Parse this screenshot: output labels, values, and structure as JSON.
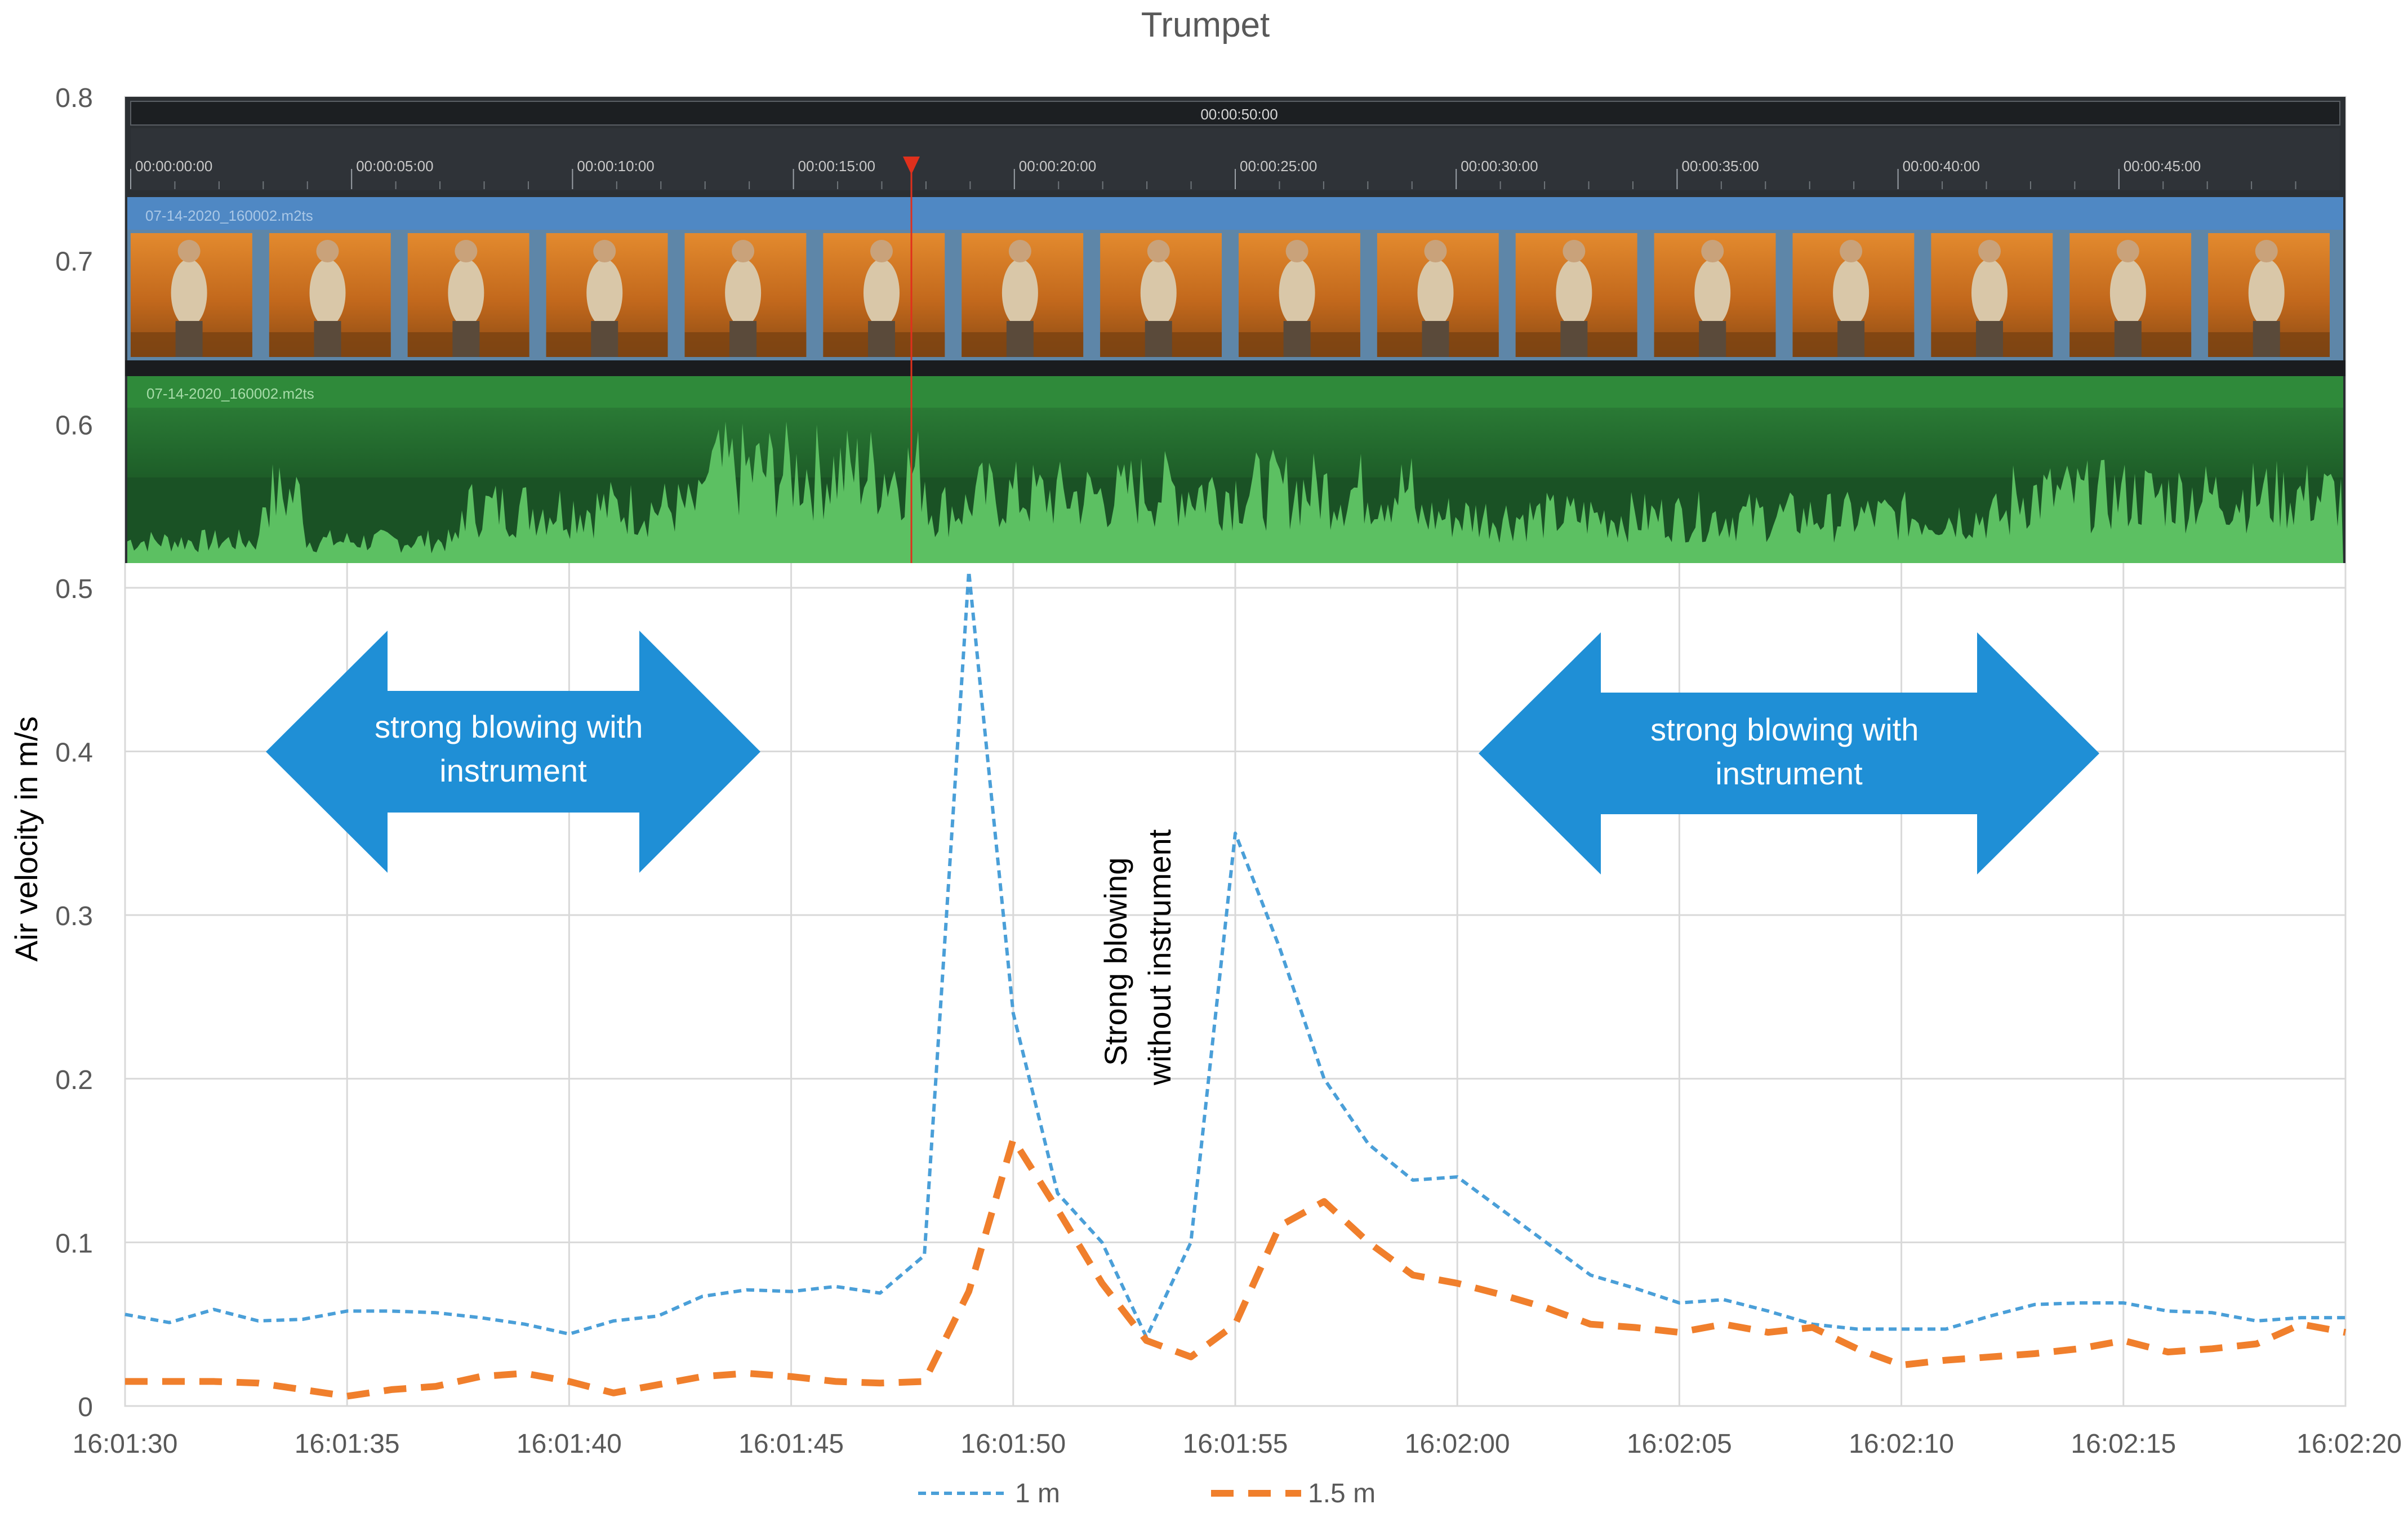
{
  "chart_data": {
    "type": "line",
    "title": "Trumpet",
    "xlabel": "",
    "ylabel": "Air velocity in m/s",
    "ylim": [
      0,
      0.8
    ],
    "yticks": [
      "0",
      "0.1",
      "0.2",
      "0.3",
      "0.4",
      "0.5",
      "0.6",
      "0.7",
      "0.8"
    ],
    "xlim": [
      "16:01:30",
      "16:02:20"
    ],
    "xticks": [
      "16:01:30",
      "16:01:35",
      "16:01:40",
      "16:01:45",
      "16:01:50",
      "16:01:55",
      "16:02:00",
      "16:02:05",
      "16:02:10",
      "16:02:15",
      "16:02:20"
    ],
    "grid": true,
    "legend": "bottom",
    "x": [
      "16:01:30",
      "16:01:31",
      "16:01:32",
      "16:01:33",
      "16:01:34",
      "16:01:35",
      "16:01:36",
      "16:01:37",
      "16:01:38",
      "16:01:39",
      "16:01:40",
      "16:01:41",
      "16:01:42",
      "16:01:43",
      "16:01:44",
      "16:01:45",
      "16:01:46",
      "16:01:47",
      "16:01:48",
      "16:01:49",
      "16:01:50",
      "16:01:51",
      "16:01:52",
      "16:01:53",
      "16:01:54",
      "16:01:55",
      "16:01:56",
      "16:01:57",
      "16:01:58",
      "16:01:59",
      "16:02:00",
      "16:02:01",
      "16:02:02",
      "16:02:03",
      "16:02:04",
      "16:02:05",
      "16:02:06",
      "16:02:07",
      "16:02:08",
      "16:02:09",
      "16:02:10",
      "16:02:11",
      "16:02:12",
      "16:02:13",
      "16:02:14",
      "16:02:15",
      "16:02:16",
      "16:02:17",
      "16:02:18",
      "16:02:19",
      "16:02:20"
    ],
    "series": [
      {
        "name": "1 m",
        "color": "#4a9fd8",
        "style": "dotted",
        "values": [
          0.056,
          0.051,
          0.059,
          0.052,
          0.053,
          0.058,
          0.058,
          0.057,
          0.054,
          0.05,
          0.044,
          0.052,
          0.055,
          0.067,
          0.071,
          0.07,
          0.073,
          0.069,
          0.092,
          0.51,
          0.24,
          0.13,
          0.1,
          0.042,
          0.1,
          0.35,
          0.28,
          0.2,
          0.16,
          0.138,
          0.14,
          0.12,
          0.1,
          0.08,
          0.072,
          0.063,
          0.065,
          0.058,
          0.05,
          0.047,
          0.047,
          0.047,
          0.055,
          0.062,
          0.063,
          0.063,
          0.058,
          0.057,
          0.052,
          0.054,
          0.054
        ]
      },
      {
        "name": "1.5 m",
        "color": "#f07f2c",
        "style": "dashed",
        "values": [
          0.015,
          0.015,
          0.015,
          0.014,
          0.01,
          0.006,
          0.01,
          0.012,
          0.018,
          0.02,
          0.015,
          0.008,
          0.013,
          0.018,
          0.02,
          0.018,
          0.015,
          0.014,
          0.015,
          0.07,
          0.163,
          0.12,
          0.075,
          0.04,
          0.03,
          0.05,
          0.11,
          0.125,
          0.1,
          0.08,
          0.075,
          0.068,
          0.06,
          0.05,
          0.048,
          0.045,
          0.05,
          0.045,
          0.048,
          0.035,
          0.025,
          0.028,
          0.03,
          0.032,
          0.035,
          0.04,
          0.033,
          0.035,
          0.038,
          0.05,
          0.045
        ]
      }
    ],
    "annotations": {
      "left_arrow": "strong blowing with instrument",
      "right_arrow": "strong blowing with instrument",
      "vertical_note_line1": "Strong blowing",
      "vertical_note_line2": "without instrument"
    }
  },
  "video_editor_overlay": {
    "ruler_duration": "00:00:50:00",
    "ruler_ticks": [
      "00:00:00:00",
      "00:00:05:00",
      "00:00:10:00",
      "00:00:15:00",
      "00:00:20:00",
      "00:00:25:00",
      "00:00:30:00",
      "00:00:35:00",
      "00:00:40:00",
      "00:00:45:00"
    ],
    "video_clip_name": "07-14-2020_160002.m2ts",
    "audio_clip_name": "07-14-2020_160002.m2ts",
    "playhead_time": "00:00:17:15",
    "thumbnail_count": 16,
    "colors": {
      "timeline_bg": "#2b2f33",
      "video_track": "#4f88c4",
      "audio_track": "#1c5a28",
      "waveform": "#5cc062",
      "playhead": "#e0301c"
    }
  }
}
